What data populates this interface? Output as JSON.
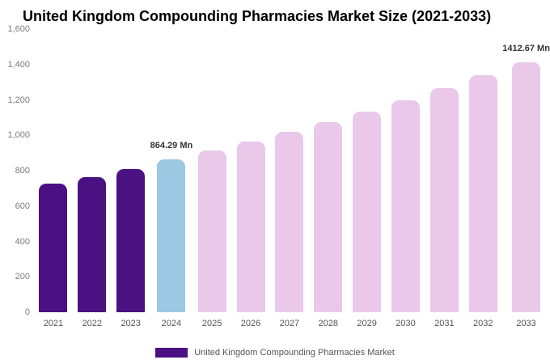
{
  "title": "United Kingdom Compounding Pharmacies Market Size (2021-2033)",
  "legend": {
    "label": "United Kingdom Compounding Pharmacies Market"
  },
  "colors": {
    "historical": "#4b1182",
    "current": "#9bc8e2",
    "forecast": "#eac8ea",
    "axis_text": "#7a7a7a",
    "value_label_text": "#333333"
  },
  "chart_data": {
    "type": "bar",
    "title": "United Kingdom Compounding Pharmacies Market Size (2021-2033)",
    "categories": [
      "2021",
      "2022",
      "2023",
      "2024",
      "2025",
      "2026",
      "2027",
      "2028",
      "2029",
      "2030",
      "2031",
      "2032",
      "2033"
    ],
    "values": [
      725,
      762,
      810,
      864.29,
      912.8,
      964.1,
      1018.2,
      1075.3,
      1135.6,
      1199.3,
      1266.5,
      1337.5,
      1412.67
    ],
    "unit": "Mn",
    "xlabel": "",
    "ylabel": "",
    "ylim": [
      0,
      1600
    ],
    "yticks": [
      0,
      200,
      400,
      600,
      800,
      1000,
      1200,
      1400,
      1600
    ],
    "ytick_labels": [
      "0",
      "200",
      "400",
      "600",
      "800",
      "1,000",
      "1,200",
      "1,400",
      "1,600"
    ],
    "grid": false,
    "legend_position": "bottom",
    "annotations": [
      {
        "category": "2024",
        "text": "864.29 Mn"
      },
      {
        "category": "2033",
        "text": "1412.67 Mn"
      }
    ],
    "bar_color_roles": {
      "2021": "historical",
      "2022": "historical",
      "2023": "historical",
      "2024": "current",
      "default": "forecast"
    }
  }
}
